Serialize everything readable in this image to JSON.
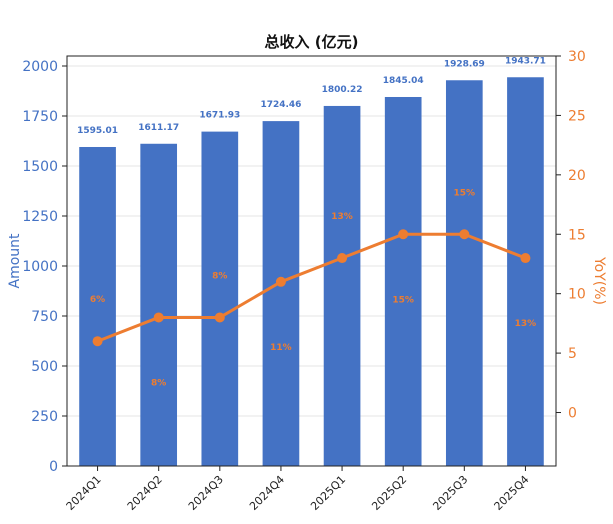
{
  "chart_data": {
    "type": "bar",
    "title": "总收入 (亿元)",
    "xlabel": "",
    "ylabel": "Amount",
    "y2label": "YoY(%)",
    "categories": [
      "2024Q1",
      "2024Q2",
      "2024Q3",
      "2024Q4",
      "2025Q1",
      "2025Q2",
      "2025Q3",
      "2025Q4"
    ],
    "series": [
      {
        "type": "bar",
        "axis": "left",
        "values": [
          1595.01,
          1611.17,
          1671.93,
          1724.46,
          1800.22,
          1845.04,
          1928.69,
          1943.71
        ],
        "labels": [
          "1595.01",
          "1611.17",
          "1671.93",
          "1724.46",
          "1800.22",
          "1845.04",
          "1928.69",
          "1943.71"
        ],
        "color": "#4472c4"
      },
      {
        "type": "line",
        "axis": "right",
        "values": [
          6,
          8,
          8,
          11,
          13,
          15,
          15,
          13
        ],
        "labels": [
          "6%",
          "8%",
          "8%",
          "11%",
          "13%",
          "15%",
          "15%",
          "13%"
        ],
        "color": "#ed7d31"
      }
    ],
    "ylim": [
      0,
      2050
    ],
    "y2lim": [
      -4.5,
      30
    ],
    "yticks": [
      "0",
      "250",
      "500",
      "750",
      "1000",
      "1250",
      "1500",
      "1750",
      "2000"
    ],
    "y2ticks": [
      "0",
      "5",
      "10",
      "15",
      "20",
      "25",
      "30"
    ],
    "grid": true,
    "legend": "none"
  }
}
